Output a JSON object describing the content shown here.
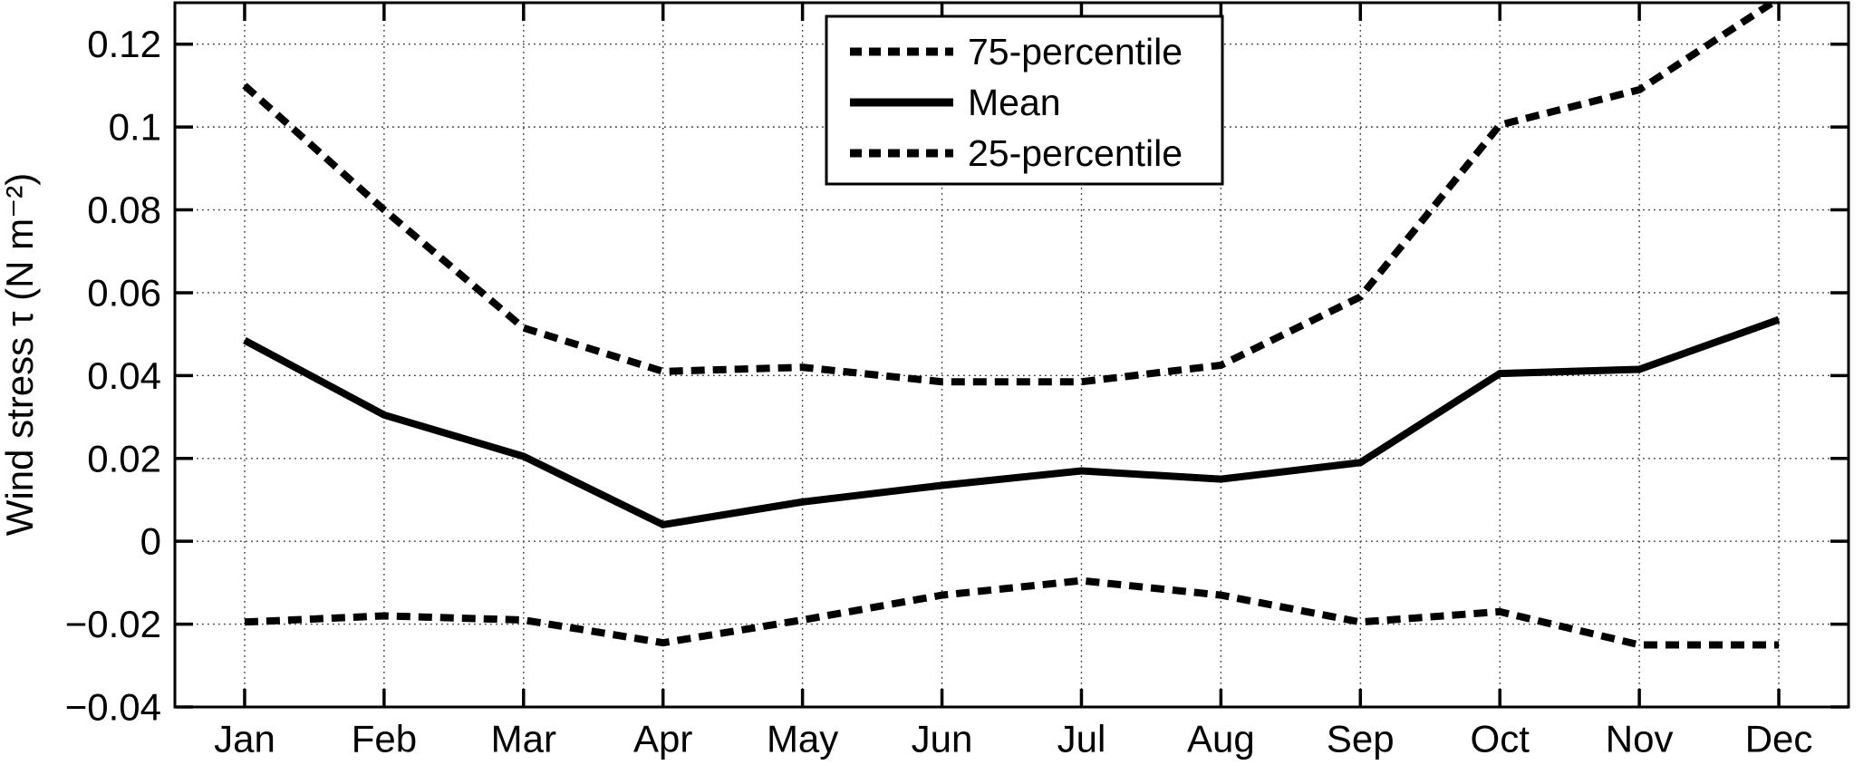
{
  "chart_data": {
    "type": "line",
    "title": "",
    "xlabel": "",
    "ylabel": "Wind stress τ (N m⁻²)",
    "categories": [
      "Jan",
      "Feb",
      "Mar",
      "Apr",
      "May",
      "Jun",
      "Jul",
      "Aug",
      "Sep",
      "Oct",
      "Nov",
      "Dec"
    ],
    "series": [
      {
        "name": "75-percentile",
        "style": "dashed",
        "values": [
          0.11,
          0.08,
          0.0515,
          0.041,
          0.042,
          0.0385,
          0.0385,
          0.0425,
          0.059,
          0.1005,
          0.109,
          0.131
        ]
      },
      {
        "name": "Mean",
        "style": "solid",
        "values": [
          0.0485,
          0.0305,
          0.0205,
          0.004,
          0.0095,
          0.0135,
          0.017,
          0.015,
          0.019,
          0.0405,
          0.0415,
          0.0535
        ]
      },
      {
        "name": "25-percentile",
        "style": "dashed",
        "values": [
          -0.0195,
          -0.018,
          -0.019,
          -0.0245,
          -0.019,
          -0.013,
          -0.0095,
          -0.013,
          -0.0195,
          -0.017,
          -0.025,
          -0.025
        ]
      }
    ],
    "y_ticks": {
      "values": [
        -0.04,
        -0.02,
        0,
        0.02,
        0.04,
        0.06,
        0.08,
        0.1,
        0.12
      ],
      "labels": [
        "−0.04",
        "−0.02",
        "0",
        "0.02",
        "0.04",
        "0.06",
        "0.08",
        "0.1",
        "0.12"
      ]
    },
    "axis": {
      "xmin": 0.5,
      "xmax": 12.5,
      "ymin": -0.04,
      "ymax": 0.13
    },
    "grid": "dotted",
    "legend_position": "top-center",
    "colors": {
      "line": "#000000",
      "background": "#ffffff"
    }
  }
}
